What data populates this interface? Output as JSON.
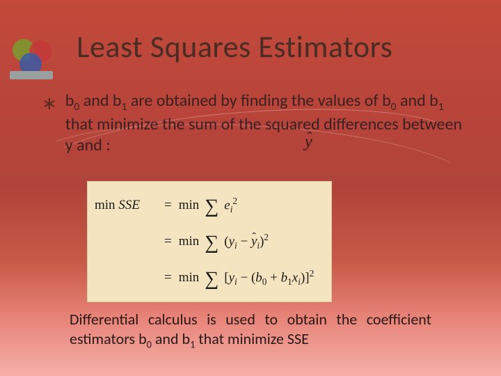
{
  "logo": {
    "circle_colors": [
      "#7a9c2e",
      "#c43a3a",
      "#3a5aa4"
    ],
    "bar_color": "#9aa0a0"
  },
  "title": "Least Squares Estimators",
  "title_color": "#4a2c24",
  "title_fontsize": 44,
  "bullet": {
    "marker": "∗",
    "b0": "b",
    "sub0": "0",
    "and1": " and ",
    "b1": "b",
    "sub1": "1",
    "part1": " are obtained by finding the values of ",
    "b0b": "b",
    "sub0b": "0",
    "and2": " and ",
    "b1b": "b",
    "sub1b": "1",
    "part2": " that minimize the sum of the squared differences between  y  and     :",
    "fontsize": 24,
    "color": "#3a2020"
  },
  "yhat_symbol": {
    "y": "y",
    "hat": "ˆ"
  },
  "formula": {
    "background_color": "#f5e4c0",
    "border_color": "#d8c8a0",
    "text_color": "#1a1a1a",
    "fontsize": 19,
    "line1": {
      "lhs_min": "min ",
      "lhs_sse": "SSE",
      "eq": "=",
      "rhs_min": "min",
      "rhs_body": "e",
      "rhs_sub": "i",
      "rhs_sup": "2"
    },
    "line2": {
      "eq": "=",
      "min": "min",
      "open": "(",
      "y": "y",
      "yi_sub": "i",
      "minus": " − ",
      "yhat_y": "y",
      "yhat_hat": "ˆ",
      "yhat_sub": "i",
      "close": ")",
      "sup": "2"
    },
    "line3": {
      "eq": "=",
      "min": "min",
      "open": "[",
      "y": "y",
      "yi_sub": "i",
      "minus": " − ",
      "paren_open": "(",
      "b0": "b",
      "b0_sub": "0",
      "plus": " + ",
      "b1": "b",
      "b1_sub": "1",
      "x": "x",
      "x_sub": "i",
      "paren_close": ")",
      "close": "]",
      "sup": "2"
    }
  },
  "footer": {
    "pre": "Differential calculus is used to obtain the coefficient estimators b",
    "s0": "0",
    "mid": " and b",
    "s1": "1",
    "post": " that minimize SSE",
    "fontsize": 22,
    "color": "#2a1818"
  },
  "background_gradient": [
    "#c14a3a",
    "#b8443a",
    "#b0443a",
    "#c85a48",
    "#e8857a",
    "#f5b0a8"
  ]
}
